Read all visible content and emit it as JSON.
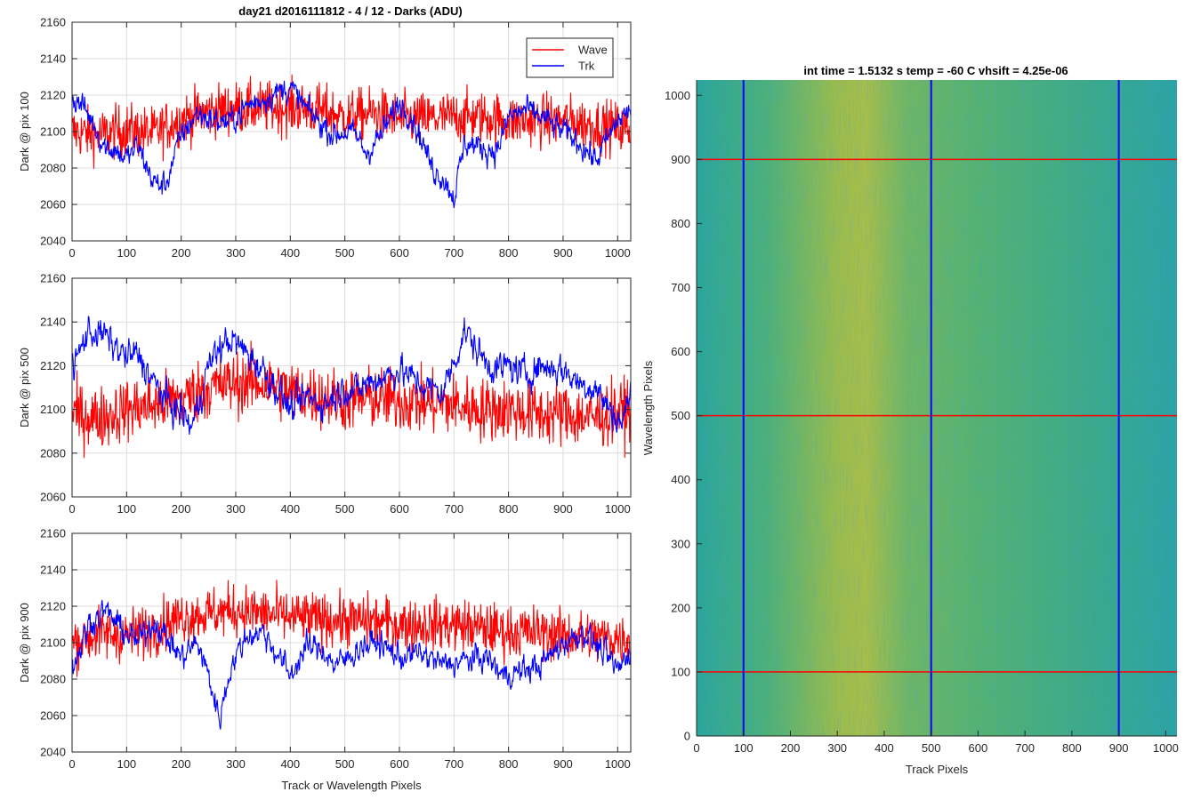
{
  "figure": {
    "title_left": "day21 d2016111812 - 4 / 12 - Darks (ADU)",
    "title_right": "int time = 1.5132 s    temp = -60 C    vhsift = 4.25e-06"
  },
  "colors": {
    "wave": "#ff0000",
    "trk": "#0000ff",
    "grid": "#dcdcdc",
    "axis": "#262626"
  },
  "chart_data": [
    {
      "type": "line",
      "ylabel": "Dark @ pix 100",
      "xlabel": "",
      "xlim": [
        0,
        1024
      ],
      "ylim": [
        2040,
        2160
      ],
      "xticks": [
        0,
        100,
        200,
        300,
        400,
        500,
        600,
        700,
        800,
        900,
        1000
      ],
      "yticks": [
        2040,
        2060,
        2080,
        2100,
        2120,
        2140,
        2160
      ],
      "grid": true,
      "legend": "top-right",
      "series": [
        {
          "name": "Wave",
          "color": "#ff0000",
          "x": [
            0,
            50,
            100,
            150,
            200,
            250,
            300,
            350,
            400,
            450,
            500,
            550,
            600,
            650,
            700,
            750,
            800,
            850,
            900,
            950,
            1024
          ],
          "y": [
            2100,
            2098,
            2101,
            2099,
            2107,
            2111,
            2113,
            2113,
            2113,
            2112,
            2108,
            2110,
            2107,
            2107,
            2108,
            2108,
            2106,
            2106,
            2106,
            2104,
            2101
          ]
        },
        {
          "name": "Trk",
          "color": "#0000ff",
          "x": [
            0,
            20,
            40,
            60,
            80,
            100,
            120,
            150,
            170,
            200,
            230,
            260,
            290,
            320,
            350,
            380,
            400,
            430,
            450,
            480,
            500,
            520,
            540,
            570,
            600,
            620,
            640,
            660,
            680,
            700,
            720,
            760,
            780,
            800,
            830,
            860,
            900,
            930,
            960,
            980,
            1000,
            1024
          ],
          "y": [
            2118,
            2114,
            2104,
            2092,
            2090,
            2085,
            2092,
            2072,
            2070,
            2098,
            2110,
            2106,
            2105,
            2114,
            2118,
            2122,
            2124,
            2112,
            2106,
            2098,
            2100,
            2098,
            2088,
            2100,
            2116,
            2110,
            2096,
            2080,
            2075,
            2064,
            2094,
            2090,
            2090,
            2108,
            2112,
            2108,
            2100,
            2094,
            2084,
            2095,
            2106,
            2112
          ]
        }
      ]
    },
    {
      "type": "line",
      "ylabel": "Dark @ pix 500",
      "xlabel": "",
      "xlim": [
        0,
        1024
      ],
      "ylim": [
        2060,
        2160
      ],
      "xticks": [
        0,
        100,
        200,
        300,
        400,
        500,
        600,
        700,
        800,
        900,
        1000
      ],
      "yticks": [
        2060,
        2080,
        2100,
        2120,
        2140,
        2160
      ],
      "grid": true,
      "series": [
        {
          "name": "Wave",
          "color": "#ff0000",
          "x": [
            0,
            50,
            100,
            150,
            200,
            250,
            300,
            350,
            400,
            450,
            500,
            550,
            600,
            650,
            700,
            750,
            800,
            850,
            900,
            950,
            1024
          ],
          "y": [
            2098,
            2096,
            2100,
            2102,
            2105,
            2110,
            2112,
            2112,
            2108,
            2106,
            2104,
            2105,
            2104,
            2103,
            2102,
            2100,
            2100,
            2098,
            2098,
            2096,
            2100
          ]
        },
        {
          "name": "Trk",
          "color": "#0000ff",
          "x": [
            0,
            30,
            60,
            80,
            100,
            120,
            150,
            180,
            200,
            220,
            250,
            270,
            290,
            320,
            350,
            380,
            400,
            430,
            460,
            480,
            500,
            520,
            540,
            560,
            600,
            650,
            680,
            700,
            720,
            750,
            780,
            800,
            830,
            860,
            900,
            930,
            960,
            990,
            1010,
            1024
          ],
          "y": [
            2118,
            2136,
            2134,
            2128,
            2124,
            2125,
            2112,
            2102,
            2098,
            2092,
            2120,
            2128,
            2132,
            2126,
            2118,
            2108,
            2100,
            2106,
            2102,
            2106,
            2110,
            2108,
            2112,
            2114,
            2118,
            2110,
            2108,
            2122,
            2136,
            2124,
            2118,
            2120,
            2116,
            2120,
            2118,
            2112,
            2110,
            2098,
            2094,
            2110
          ]
        }
      ]
    },
    {
      "type": "line",
      "ylabel": "Dark @ pix 900",
      "xlabel": "Track or Wavelength Pixels",
      "xlim": [
        0,
        1024
      ],
      "ylim": [
        2040,
        2160
      ],
      "xticks": [
        0,
        100,
        200,
        300,
        400,
        500,
        600,
        700,
        800,
        900,
        1000
      ],
      "yticks": [
        2040,
        2060,
        2080,
        2100,
        2120,
        2140,
        2160
      ],
      "grid": true,
      "series": [
        {
          "name": "Wave",
          "color": "#ff0000",
          "x": [
            0,
            50,
            100,
            150,
            200,
            250,
            300,
            350,
            400,
            450,
            500,
            550,
            600,
            650,
            700,
            750,
            800,
            850,
            900,
            950,
            1024
          ],
          "y": [
            2100,
            2105,
            2104,
            2108,
            2114,
            2116,
            2118,
            2116,
            2114,
            2113,
            2112,
            2112,
            2110,
            2110,
            2110,
            2108,
            2106,
            2106,
            2104,
            2103,
            2102
          ]
        },
        {
          "name": "Trk",
          "color": "#0000ff",
          "x": [
            0,
            30,
            60,
            90,
            120,
            150,
            170,
            200,
            230,
            250,
            270,
            290,
            320,
            350,
            380,
            400,
            430,
            460,
            480,
            500,
            530,
            560,
            600,
            640,
            680,
            720,
            760,
            790,
            820,
            860,
            900,
            940,
            980,
            1000,
            1024
          ],
          "y": [
            2085,
            2110,
            2118,
            2108,
            2100,
            2112,
            2104,
            2092,
            2100,
            2082,
            2058,
            2086,
            2104,
            2106,
            2092,
            2082,
            2098,
            2096,
            2088,
            2090,
            2098,
            2100,
            2092,
            2094,
            2088,
            2090,
            2092,
            2082,
            2084,
            2088,
            2100,
            2106,
            2092,
            2085,
            2096
          ]
        }
      ]
    },
    {
      "type": "heatmap",
      "title": "int time = 1.5132 s    temp = -60 C    vhsift = 4.25e-06",
      "xlabel": "Track Pixels",
      "ylabel": "Wavelength Pixels",
      "xlim": [
        0,
        1024
      ],
      "ylim": [
        0,
        1024
      ],
      "xticks": [
        0,
        100,
        200,
        300,
        400,
        500,
        600,
        700,
        800,
        900,
        1000
      ],
      "yticks": [
        0,
        100,
        200,
        300,
        400,
        500,
        600,
        700,
        800,
        900,
        1000
      ],
      "colormap": "parula",
      "background_profile": [
        {
          "x": 0,
          "color": "#2aa59a"
        },
        {
          "x": 150,
          "color": "#4cb078"
        },
        {
          "x": 300,
          "color": "#9cbc4a"
        },
        {
          "x": 360,
          "color": "#a8be48"
        },
        {
          "x": 450,
          "color": "#6fb664"
        },
        {
          "x": 600,
          "color": "#55b270"
        },
        {
          "x": 850,
          "color": "#3aa98a"
        },
        {
          "x": 1024,
          "color": "#2ba3a4"
        }
      ],
      "vertical_markers": [
        100,
        500,
        900
      ],
      "horizontal_markers": [
        100,
        500,
        900
      ],
      "vertical_marker_color": "#0000ff",
      "horizontal_marker_color": "#ff0000"
    }
  ]
}
